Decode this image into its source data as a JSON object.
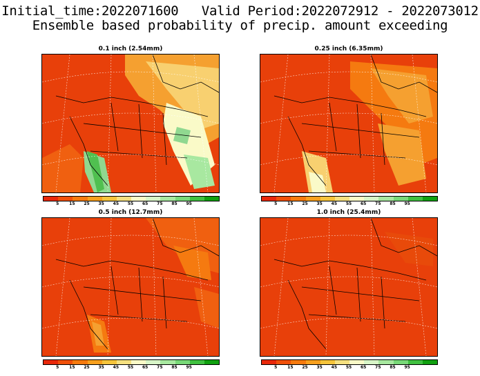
{
  "title_line1": "Initial_time:2022071600   Valid Period:2022072912 - 2022073012",
  "title_line2": "Ensemble based probability of precip. amount exceeding",
  "panels": [
    {
      "title": "0.1 inch (2.54mm)"
    },
    {
      "title": "0.25 inch (6.35mm)"
    },
    {
      "title": "0.5 inch (12.7mm)"
    },
    {
      "title": "1.0 inch (25.4mm)"
    }
  ],
  "colorbar": {
    "colors": [
      "#e8280a",
      "#f0500a",
      "#f57a0f",
      "#f7a01e",
      "#f5c43c",
      "#f5e080",
      "#fafac8",
      "#d8f5c8",
      "#a8e8a0",
      "#78d878",
      "#40c040",
      "#10a010"
    ],
    "ticks": [
      "5",
      "15",
      "25",
      "35",
      "45",
      "55",
      "65",
      "75",
      "85",
      "95"
    ]
  }
}
